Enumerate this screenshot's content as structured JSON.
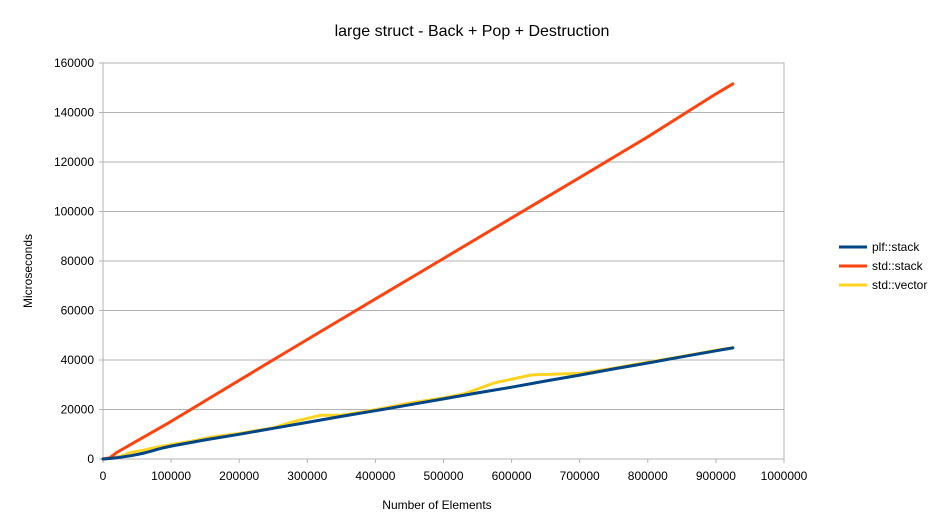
{
  "chart_data": {
    "type": "line",
    "title": "large struct - Back + Pop + Destruction",
    "xlabel": "Number of Elements",
    "ylabel": "Microseconds",
    "xlim": [
      0,
      1000000
    ],
    "ylim": [
      0,
      160000
    ],
    "xticks": [
      0,
      100000,
      200000,
      300000,
      400000,
      500000,
      600000,
      700000,
      800000,
      900000,
      1000000
    ],
    "yticks": [
      0,
      20000,
      40000,
      60000,
      80000,
      100000,
      120000,
      140000,
      160000
    ],
    "grid": "horizontal",
    "legend_position": "right",
    "series": [
      {
        "name": "plf::stack",
        "color": "#004586",
        "x": [
          0,
          10000,
          20000,
          30000,
          40000,
          50000,
          60000,
          70000,
          80000,
          90000,
          100000,
          150000,
          200000,
          250000,
          300000,
          350000,
          400000,
          450000,
          500000,
          550000,
          600000,
          650000,
          700000,
          750000,
          800000,
          850000,
          900000,
          925000
        ],
        "y": [
          0,
          200,
          500,
          900,
          1300,
          1800,
          2400,
          3100,
          3900,
          4600,
          5200,
          7700,
          10000,
          12400,
          14800,
          17200,
          19500,
          21900,
          24300,
          26700,
          29000,
          31500,
          33900,
          36400,
          38800,
          41300,
          43700,
          44900
        ]
      },
      {
        "name": "std::stack",
        "color": "#ff420e",
        "x": [
          0,
          10000,
          20000,
          100000,
          200000,
          300000,
          400000,
          500000,
          600000,
          700000,
          800000,
          900000,
          925000
        ],
        "y": [
          0,
          500,
          2600,
          15200,
          31800,
          48300,
          64700,
          81000,
          97400,
          113700,
          130200,
          147500,
          151600
        ]
      },
      {
        "name": "std::vector",
        "color": "#ffd320",
        "x": [
          0,
          10000,
          20000,
          30000,
          40000,
          50000,
          60000,
          80000,
          100000,
          130000,
          160000,
          200000,
          250000,
          280000,
          320000,
          350000,
          400000,
          450000,
          500000,
          530000,
          575000,
          630000,
          700000,
          750000,
          800000,
          850000,
          900000,
          925000
        ],
        "y": [
          0,
          300,
          700,
          1400,
          2600,
          3100,
          3600,
          4800,
          5800,
          7200,
          8900,
          10300,
          12600,
          15100,
          17700,
          17700,
          19900,
          22600,
          24700,
          26300,
          30800,
          34000,
          34600,
          36700,
          39100,
          41400,
          43900,
          45000
        ]
      }
    ]
  }
}
